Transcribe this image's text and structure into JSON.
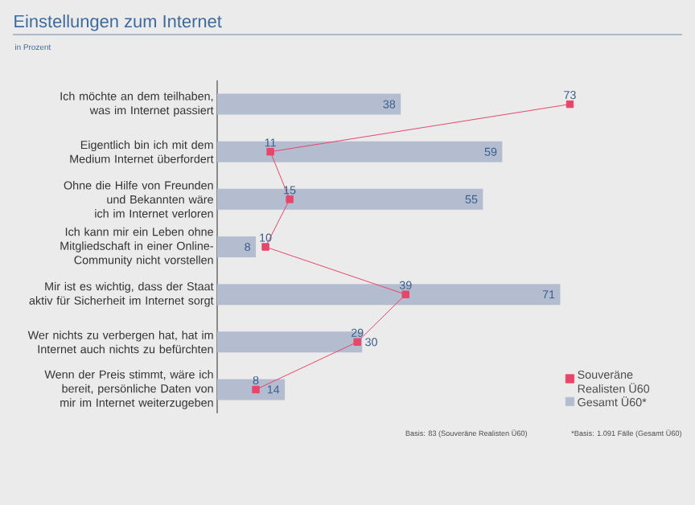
{
  "chart_data": {
    "type": "bar",
    "orientation": "horizontal",
    "title": "Einstellungen zum Internet",
    "subtitle": "in Prozent",
    "categories": [
      "Ich möchte an dem teilhaben, was im Internet passiert",
      "Eigentlich bin ich mit dem Medium Internet überfordert",
      "Ohne die Hilfe von Freunden und Bekannten wäre ich im Internet verloren",
      "Ich kann mir ein Leben ohne Mitgliedschaft in einer Online-Community nicht vorstellen",
      "Mir ist es wichtig, dass der Staat aktiv für Sicherheit im Internet sorgt",
      "Wer nichts zu verbergen hat, hat im Internet auch nichts zu befürchten",
      "Wenn der Preis stimmt, wäre ich bereit, persönliche Daten von mir im Internet weiterzugeben"
    ],
    "series": [
      {
        "name": "Souveräne Realisten Ü60",
        "type": "line",
        "color": "#e8456a",
        "values": [
          73,
          11,
          15,
          10,
          39,
          29,
          8
        ]
      },
      {
        "name": "Gesamt Ü60*",
        "color": "#b4bccf",
        "values": [
          38,
          59,
          55,
          8,
          71,
          30,
          14
        ]
      }
    ],
    "data_labels": true,
    "marker": "square",
    "line_style": "solid",
    "legend": "bottom right",
    "tick_labels": "y",
    "annotations": [
      "Basis: 83 (Souveräne Realisten Ü60)",
      "*Basis: 1.091 Fälle (Gesamt Ü60)"
    ]
  }
}
